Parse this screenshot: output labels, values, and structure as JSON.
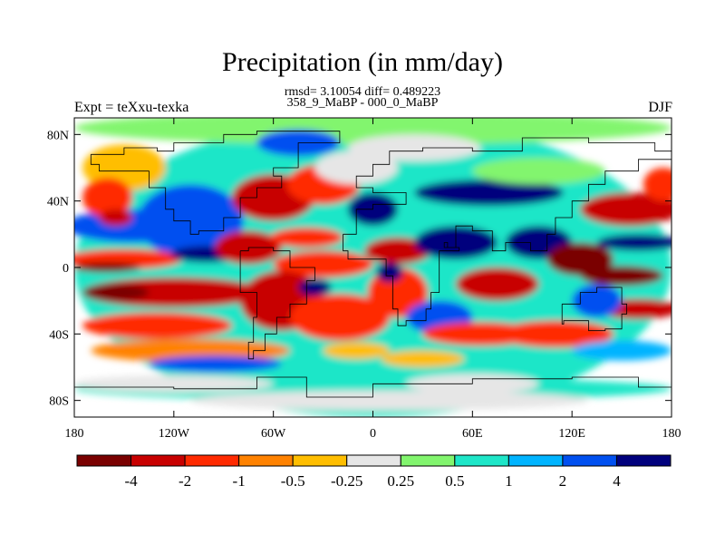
{
  "figure": {
    "title": "Precipitation (in mm/day)",
    "stats_line": "rmsd= 3.10054 diff= 0.489223",
    "subtitle": "358_9_MaBP - 000_0_MaBP",
    "experiment_label": "Expt = teXxu-texka",
    "season_label": "DJF"
  },
  "map": {
    "type": "global lat-lon filled contour map (precipitation difference)",
    "projection": "cylindrical equidistant",
    "lon_range": [
      -180,
      180
    ],
    "lat_range": [
      -90,
      90
    ],
    "x_ticks": [
      {
        "value": -180,
        "label": "180"
      },
      {
        "value": -120,
        "label": "120W"
      },
      {
        "value": -60,
        "label": "60W"
      },
      {
        "value": 0,
        "label": "0"
      },
      {
        "value": 60,
        "label": "60E"
      },
      {
        "value": 120,
        "label": "120E"
      },
      {
        "value": 180,
        "label": "180"
      }
    ],
    "y_ticks": [
      {
        "value": 80,
        "label": "80N"
      },
      {
        "value": 40,
        "label": "40N"
      },
      {
        "value": 0,
        "label": "0"
      },
      {
        "value": -40,
        "label": "40S"
      },
      {
        "value": -80,
        "label": "80S"
      }
    ]
  },
  "colorbar": {
    "colors": [
      "#7a0000",
      "#c80000",
      "#ff2a00",
      "#ff8200",
      "#ffbe00",
      "#e6e6e6",
      "#82f56e",
      "#1ee6c8",
      "#00b4ff",
      "#0050f0",
      "#00007d"
    ],
    "boundaries": [
      -4,
      -2,
      -1,
      -0.5,
      -0.25,
      0.25,
      0.5,
      1,
      2,
      4
    ],
    "labels": [
      "-4",
      "-2",
      "-1",
      "-0.5",
      "-0.25",
      "0.25",
      "0.5",
      "1",
      "2",
      "4"
    ]
  },
  "field_blobs": [
    {
      "lon": 0,
      "lat": 0,
      "rx": 180,
      "ry": 90,
      "ci": 7
    },
    {
      "lon": 0,
      "lat": 84,
      "rx": 180,
      "ry": 10,
      "ci": 6
    },
    {
      "lon": 0,
      "lat": -73,
      "rx": 180,
      "ry": 7,
      "ci": 7
    },
    {
      "lon": 10,
      "lat": -80,
      "rx": 120,
      "ry": 6,
      "ci": 5
    },
    {
      "lon": -150,
      "lat": 60,
      "rx": 25,
      "ry": 14,
      "ci": 4
    },
    {
      "lon": -145,
      "lat": 25,
      "rx": 40,
      "ry": 10,
      "ci": 9
    },
    {
      "lon": -110,
      "lat": 28,
      "rx": 32,
      "ry": 22,
      "ci": 9
    },
    {
      "lon": -160,
      "lat": 42,
      "rx": 15,
      "ry": 12,
      "ci": 2
    },
    {
      "lon": -155,
      "lat": 30,
      "rx": 10,
      "ry": 5,
      "ci": 1
    },
    {
      "lon": -150,
      "lat": 5,
      "rx": 35,
      "ry": 6,
      "ci": 2
    },
    {
      "lon": -160,
      "lat": 0,
      "rx": 20,
      "ry": 3,
      "ci": 0
    },
    {
      "lon": -120,
      "lat": -15,
      "rx": 55,
      "ry": 9,
      "ci": 1
    },
    {
      "lon": -155,
      "lat": -15,
      "rx": 20,
      "ry": 5,
      "ci": 0
    },
    {
      "lon": -130,
      "lat": -35,
      "rx": 45,
      "ry": 8,
      "ci": 2
    },
    {
      "lon": -110,
      "lat": -50,
      "rx": 60,
      "ry": 7,
      "ci": 3
    },
    {
      "lon": -95,
      "lat": -58,
      "rx": 40,
      "ry": 5,
      "ci": 9
    },
    {
      "lon": -100,
      "lat": 8,
      "rx": 22,
      "ry": 5,
      "ci": 10
    },
    {
      "lon": -60,
      "lat": 42,
      "rx": 25,
      "ry": 14,
      "ci": 1
    },
    {
      "lon": -30,
      "lat": 50,
      "rx": 22,
      "ry": 12,
      "ci": 2
    },
    {
      "lon": -45,
      "lat": 75,
      "rx": 25,
      "ry": 8,
      "ci": 9
    },
    {
      "lon": -75,
      "lat": 12,
      "rx": 20,
      "ry": 10,
      "ci": 1
    },
    {
      "lon": -40,
      "lat": 18,
      "rx": 22,
      "ry": 6,
      "ci": 2
    },
    {
      "lon": -30,
      "lat": 2,
      "rx": 30,
      "ry": 8,
      "ci": 2
    },
    {
      "lon": -55,
      "lat": -20,
      "rx": 25,
      "ry": 18,
      "ci": 1
    },
    {
      "lon": -20,
      "lat": -30,
      "rx": 30,
      "ry": 14,
      "ci": 2
    },
    {
      "lon": -35,
      "lat": -12,
      "rx": 10,
      "ry": 5,
      "ci": 10
    },
    {
      "lon": -10,
      "lat": -50,
      "rx": 20,
      "ry": 5,
      "ci": 4
    },
    {
      "lon": -10,
      "lat": 60,
      "rx": 25,
      "ry": 10,
      "ci": 5
    },
    {
      "lon": 25,
      "lat": 72,
      "rx": 40,
      "ry": 8,
      "ci": 5
    },
    {
      "lon": 0,
      "lat": 35,
      "rx": 15,
      "ry": 10,
      "ci": 10
    },
    {
      "lon": 15,
      "lat": 10,
      "rx": 20,
      "ry": 8,
      "ci": 1
    },
    {
      "lon": 15,
      "lat": -15,
      "rx": 18,
      "ry": 15,
      "ci": 2
    },
    {
      "lon": 10,
      "lat": -3,
      "rx": 8,
      "ry": 6,
      "ci": 10
    },
    {
      "lon": 40,
      "lat": -30,
      "rx": 20,
      "ry": 10,
      "ci": 9
    },
    {
      "lon": 30,
      "lat": -55,
      "rx": 25,
      "ry": 5,
      "ci": 4
    },
    {
      "lon": 70,
      "lat": 45,
      "rx": 45,
      "ry": 8,
      "ci": 10
    },
    {
      "lon": 100,
      "lat": 58,
      "rx": 40,
      "ry": 8,
      "ci": 6
    },
    {
      "lon": 50,
      "lat": 15,
      "rx": 25,
      "ry": 10,
      "ci": 10
    },
    {
      "lon": 75,
      "lat": -10,
      "rx": 25,
      "ry": 10,
      "ci": 1
    },
    {
      "lon": 65,
      "lat": -40,
      "rx": 35,
      "ry": 7,
      "ci": 2
    },
    {
      "lon": 110,
      "lat": -40,
      "rx": 35,
      "ry": 8,
      "ci": 2
    },
    {
      "lon": 100,
      "lat": 15,
      "rx": 20,
      "ry": 10,
      "ci": 10
    },
    {
      "lon": 125,
      "lat": 5,
      "rx": 20,
      "ry": 10,
      "ci": 0
    },
    {
      "lon": 155,
      "lat": 35,
      "rx": 30,
      "ry": 10,
      "ci": 1
    },
    {
      "lon": 160,
      "lat": 15,
      "rx": 25,
      "ry": 5,
      "ci": 10
    },
    {
      "lon": 150,
      "lat": -5,
      "rx": 25,
      "ry": 6,
      "ci": 0
    },
    {
      "lon": 160,
      "lat": -25,
      "rx": 25,
      "ry": 6,
      "ci": 1
    },
    {
      "lon": 135,
      "lat": -20,
      "rx": 15,
      "ry": 10,
      "ci": 9
    },
    {
      "lon": 150,
      "lat": -50,
      "rx": 30,
      "ry": 6,
      "ci": 8
    },
    {
      "lon": 60,
      "lat": -70,
      "rx": 40,
      "ry": 6,
      "ci": 5
    },
    {
      "lon": -120,
      "lat": -70,
      "rx": 60,
      "ry": 5,
      "ci": 5
    },
    {
      "lon": 175,
      "lat": 50,
      "rx": 12,
      "ry": 10,
      "ci": 2
    }
  ],
  "coastlines": [
    [
      [
        -170,
        68
      ],
      [
        -150,
        72
      ],
      [
        -130,
        70
      ],
      [
        -120,
        75
      ],
      [
        -90,
        80
      ],
      [
        -70,
        82
      ],
      [
        -30,
        82
      ],
      [
        -20,
        75
      ],
      [
        -45,
        60
      ],
      [
        -60,
        55
      ],
      [
        -55,
        48
      ],
      [
        -70,
        42
      ],
      [
        -80,
        30
      ],
      [
        -90,
        22
      ],
      [
        -105,
        20
      ],
      [
        -110,
        28
      ],
      [
        -120,
        35
      ],
      [
        -125,
        48
      ],
      [
        -135,
        58
      ],
      [
        -155,
        58
      ],
      [
        -165,
        62
      ],
      [
        -170,
        68
      ]
    ],
    [
      [
        -80,
        10
      ],
      [
        -75,
        12
      ],
      [
        -60,
        10
      ],
      [
        -50,
        0
      ],
      [
        -35,
        -8
      ],
      [
        -40,
        -22
      ],
      [
        -50,
        -30
      ],
      [
        -58,
        -40
      ],
      [
        -65,
        -50
      ],
      [
        -72,
        -55
      ],
      [
        -75,
        -45
      ],
      [
        -72,
        -30
      ],
      [
        -70,
        -15
      ],
      [
        -80,
        -5
      ],
      [
        -80,
        10
      ]
    ],
    [
      [
        -18,
        20
      ],
      [
        -10,
        35
      ],
      [
        0,
        38
      ],
      [
        10,
        38
      ],
      [
        20,
        45
      ],
      [
        0,
        48
      ],
      [
        -10,
        55
      ],
      [
        0,
        62
      ],
      [
        10,
        70
      ],
      [
        30,
        72
      ],
      [
        60,
        70
      ],
      [
        90,
        78
      ],
      [
        130,
        75
      ],
      [
        170,
        70
      ],
      [
        180,
        65
      ],
      [
        160,
        58
      ],
      [
        140,
        50
      ],
      [
        130,
        40
      ],
      [
        120,
        30
      ],
      [
        110,
        20
      ],
      [
        105,
        10
      ],
      [
        95,
        15
      ],
      [
        80,
        10
      ],
      [
        72,
        22
      ],
      [
        60,
        25
      ],
      [
        50,
        12
      ],
      [
        45,
        15
      ],
      [
        43,
        12
      ],
      [
        52,
        10
      ],
      [
        40,
        -5
      ],
      [
        40,
        -15
      ],
      [
        35,
        -25
      ],
      [
        32,
        -32
      ],
      [
        20,
        -35
      ],
      [
        15,
        -25
      ],
      [
        12,
        -5
      ],
      [
        8,
        5
      ],
      [
        -5,
        5
      ],
      [
        -15,
        10
      ],
      [
        -18,
        20
      ]
    ],
    [
      [
        114,
        -22
      ],
      [
        125,
        -15
      ],
      [
        135,
        -12
      ],
      [
        142,
        -12
      ],
      [
        150,
        -22
      ],
      [
        153,
        -28
      ],
      [
        150,
        -37
      ],
      [
        140,
        -38
      ],
      [
        130,
        -32
      ],
      [
        115,
        -34
      ],
      [
        114,
        -22
      ]
    ],
    [
      [
        -180,
        -72
      ],
      [
        -120,
        -73
      ],
      [
        -70,
        -66
      ],
      [
        -40,
        -78
      ],
      [
        0,
        -70
      ],
      [
        60,
        -67
      ],
      [
        120,
        -66
      ],
      [
        160,
        -72
      ],
      [
        180,
        -72
      ]
    ]
  ]
}
